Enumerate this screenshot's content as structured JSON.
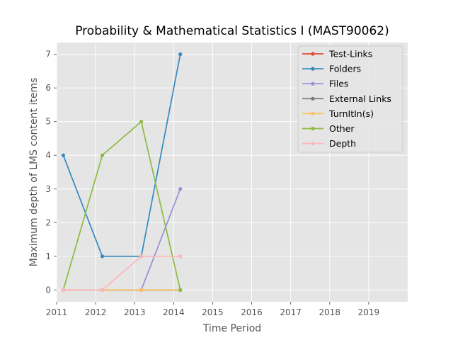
{
  "chart_data": {
    "type": "line",
    "title": "Probability & Mathematical Statistics I (MAST90062)",
    "xlabel": "Time Period",
    "ylabel": "Maximum depth of LMS content items",
    "xlim": [
      2011,
      2020
    ],
    "ylim": [
      -0.35,
      7.35
    ],
    "x_ticks": [
      2011,
      2012,
      2013,
      2014,
      2015,
      2016,
      2017,
      2018,
      2019
    ],
    "y_ticks": [
      0,
      1,
      2,
      3,
      4,
      5,
      6,
      7
    ],
    "grid": true,
    "legend_position": "top-right",
    "background": "#e5e5e5",
    "series": [
      {
        "name": "Test-Links",
        "color": "#e24a33",
        "points": [
          [
            2011.17,
            0
          ],
          [
            2012.17,
            0
          ],
          [
            2013.17,
            0
          ],
          [
            2014.17,
            0
          ]
        ]
      },
      {
        "name": "Folders",
        "color": "#348abd",
        "points": [
          [
            2011.17,
            4
          ],
          [
            2012.17,
            1
          ],
          [
            2013.17,
            1
          ],
          [
            2014.17,
            7
          ]
        ]
      },
      {
        "name": "Files",
        "color": "#988ed5",
        "points": [
          [
            2011.17,
            0
          ],
          [
            2012.17,
            0
          ],
          [
            2013.17,
            0
          ],
          [
            2014.17,
            3
          ]
        ]
      },
      {
        "name": "External Links",
        "color": "#777777",
        "points": [
          [
            2011.17,
            0
          ],
          [
            2012.17,
            0
          ],
          [
            2013.17,
            0
          ],
          [
            2014.17,
            0
          ]
        ]
      },
      {
        "name": "TurnItIn(s)",
        "color": "#fbc15e",
        "points": [
          [
            2011.17,
            0
          ],
          [
            2012.17,
            0
          ],
          [
            2013.17,
            0
          ],
          [
            2014.17,
            0
          ]
        ]
      },
      {
        "name": "Other",
        "color": "#8eba42",
        "points": [
          [
            2011.17,
            0
          ],
          [
            2012.17,
            4
          ],
          [
            2013.17,
            5
          ],
          [
            2014.17,
            0
          ]
        ]
      },
      {
        "name": "Depth",
        "color": "#ffb5b8",
        "points": [
          [
            2011.17,
            0
          ],
          [
            2012.17,
            0
          ],
          [
            2013.17,
            1
          ],
          [
            2014.17,
            1
          ]
        ]
      }
    ]
  }
}
